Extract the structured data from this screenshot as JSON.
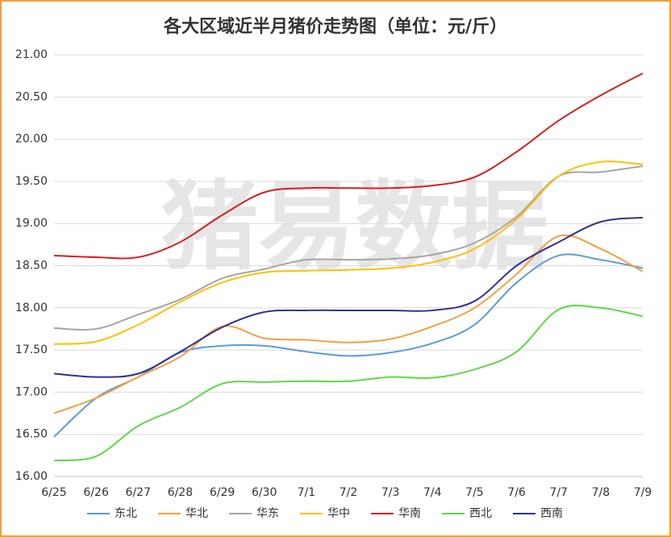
{
  "chart_data": {
    "type": "line",
    "title": "各大区域近半月猪价走势图（单位：元/斤）",
    "watermark": "猪易数据",
    "categories": [
      "6/25",
      "6/26",
      "6/27",
      "6/28",
      "6/29",
      "6/30",
      "7/1",
      "7/2",
      "7/3",
      "7/4",
      "7/5",
      "7/6",
      "7/7",
      "7/8",
      "7/9"
    ],
    "ylim": [
      16,
      21
    ],
    "yticks": [
      {
        "value": 16,
        "label": "16.00"
      },
      {
        "value": 16.5,
        "label": "16.50"
      },
      {
        "value": 17,
        "label": "17.00"
      },
      {
        "value": 17.5,
        "label": "17.50"
      },
      {
        "value": 18,
        "label": "18.00"
      },
      {
        "value": 18.5,
        "label": "18.50"
      },
      {
        "value": 19,
        "label": "19.00"
      },
      {
        "value": 19.5,
        "label": "19.50"
      },
      {
        "value": 20,
        "label": "20.00"
      },
      {
        "value": 20.5,
        "label": "20.50"
      },
      {
        "value": 21,
        "label": "21.00"
      }
    ],
    "grid": true,
    "legend": "bottom",
    "series": [
      {
        "name": "东北",
        "color": "#5b9bd5",
        "values": [
          16.47,
          16.93,
          17.18,
          17.47,
          17.55,
          17.55,
          17.48,
          17.43,
          17.47,
          17.58,
          17.8,
          18.3,
          18.62,
          18.57,
          18.47
        ]
      },
      {
        "name": "华北",
        "color": "#f4a040",
        "values": [
          16.75,
          16.93,
          17.18,
          17.42,
          17.78,
          17.64,
          17.62,
          17.59,
          17.63,
          17.78,
          18.0,
          18.4,
          18.85,
          18.7,
          18.43
        ]
      },
      {
        "name": "华东",
        "color": "#a5a5a5",
        "values": [
          17.76,
          17.75,
          17.92,
          18.1,
          18.35,
          18.46,
          18.57,
          18.57,
          18.58,
          18.63,
          18.77,
          19.08,
          19.56,
          19.61,
          19.68
        ]
      },
      {
        "name": "华中",
        "color": "#ffc000",
        "values": [
          17.57,
          17.6,
          17.8,
          18.07,
          18.3,
          18.42,
          18.44,
          18.45,
          18.47,
          18.54,
          18.7,
          19.05,
          19.56,
          19.73,
          19.7
        ]
      },
      {
        "name": "华南",
        "color": "#d42020",
        "values": [
          18.62,
          18.6,
          18.6,
          18.78,
          19.1,
          19.37,
          19.42,
          19.42,
          19.42,
          19.45,
          19.55,
          19.85,
          20.22,
          20.52,
          20.78
        ]
      },
      {
        "name": "西北",
        "color": "#5ed846",
        "values": [
          16.19,
          16.24,
          16.6,
          16.82,
          17.1,
          17.12,
          17.13,
          17.13,
          17.18,
          17.17,
          17.27,
          17.48,
          17.98,
          18.0,
          17.9
        ]
      },
      {
        "name": "西南",
        "color": "#2e3192",
        "values": [
          17.22,
          17.18,
          17.22,
          17.48,
          17.77,
          17.95,
          17.97,
          17.97,
          17.97,
          17.97,
          18.08,
          18.5,
          18.78,
          19.02,
          19.07
        ]
      }
    ]
  }
}
